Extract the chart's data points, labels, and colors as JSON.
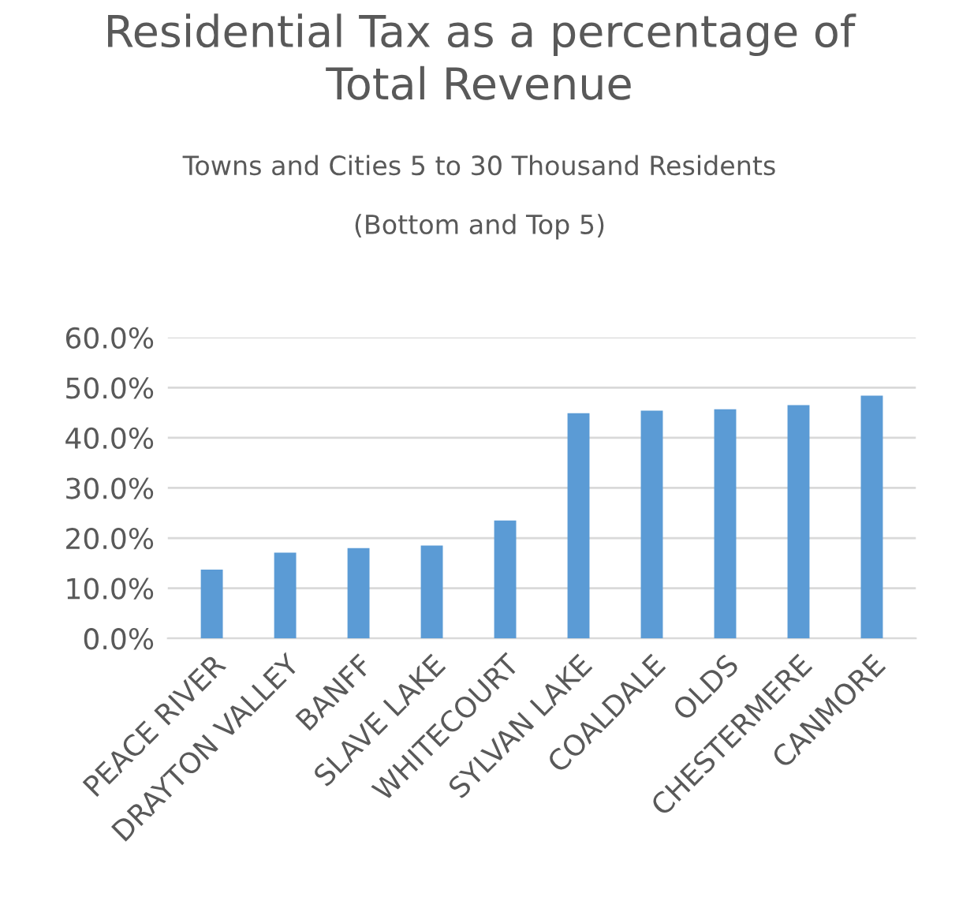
{
  "chart_data": {
    "type": "bar",
    "title": "Residential Tax as a percentage of\nTotal Revenue",
    "subtitle": "Towns and Cities 5 to 30 Thousand Residents\n\n(Bottom and Top 5)",
    "categories": [
      "PEACE RIVER",
      "DRAYTON VALLEY",
      "BANFF",
      "SLAVE LAKE",
      "WHITECOURT",
      "SYLVAN LAKE",
      "COALDALE",
      "OLDS",
      "CHESTERMERE",
      "CANMORE"
    ],
    "values": [
      13.7,
      17.1,
      18.0,
      18.5,
      23.5,
      44.9,
      45.4,
      45.7,
      46.5,
      48.4
    ],
    "color": "#5b9bd5",
    "ylim": [
      0,
      60
    ],
    "yticks": [
      {
        "value": 0,
        "label": "0.0%"
      },
      {
        "value": 10,
        "label": "10.0%"
      },
      {
        "value": 20,
        "label": "20.0%"
      },
      {
        "value": 30,
        "label": "30.0%"
      },
      {
        "value": 40,
        "label": "40.0%"
      },
      {
        "value": 50,
        "label": "50.0%"
      },
      {
        "value": 60,
        "label": "60.0%"
      }
    ],
    "grid": "y",
    "legend": false
  }
}
